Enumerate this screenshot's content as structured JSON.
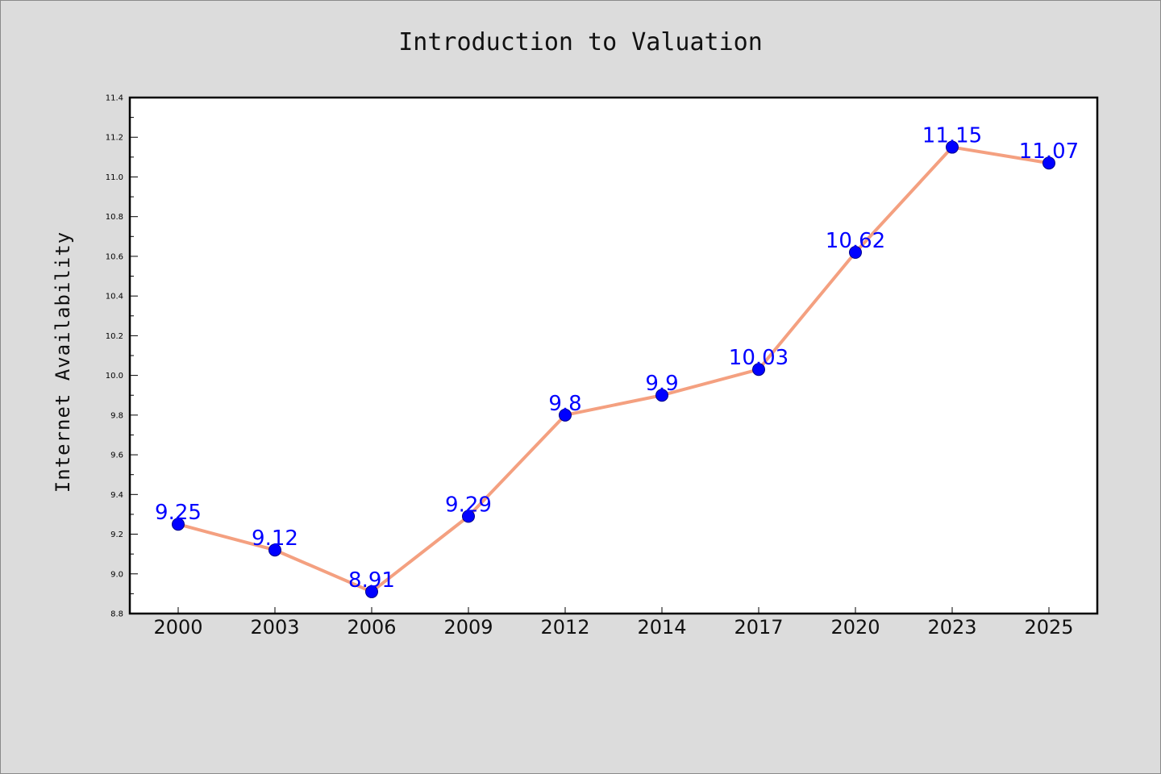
{
  "colors": {
    "background": "#dcdcdc",
    "plot_background": "#ffffff",
    "line": "#f4a080",
    "marker": "#0000ff",
    "data_label": "#0000ff"
  },
  "chart_data": {
    "type": "line",
    "title": "Introduction to Valuation",
    "xlabel": "",
    "ylabel": "Internet Availability",
    "categories": [
      "2000",
      "2003",
      "2006",
      "2009",
      "2012",
      "2014",
      "2017",
      "2020",
      "2023",
      "2025"
    ],
    "series": [
      {
        "values": [
          9.25,
          9.12,
          8.91,
          9.29,
          9.8,
          9.9,
          10.03,
          10.62,
          11.15,
          11.07
        ],
        "labels": [
          "9.25",
          "9.12",
          "8.91",
          "9.29",
          "9.8",
          "9.9",
          "10.03",
          "10.62",
          "11.15",
          "11.07"
        ]
      }
    ],
    "ylim": [
      8.8,
      11.4
    ],
    "yticks": [
      "8.8",
      "9.0",
      "9.2",
      "9.4",
      "9.6",
      "9.8",
      "10.0",
      "10.2",
      "10.4",
      "10.6",
      "10.8",
      "11.0",
      "11.2",
      "11.4"
    ],
    "grid": false,
    "legend": "none"
  }
}
